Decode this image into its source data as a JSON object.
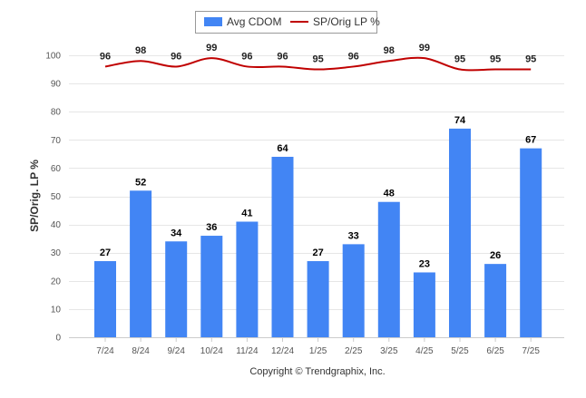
{
  "chart_data": {
    "type": "bar",
    "categories": [
      "7/24",
      "8/24",
      "9/24",
      "10/24",
      "11/24",
      "12/24",
      "1/25",
      "2/25",
      "3/25",
      "4/25",
      "5/25",
      "6/25",
      "7/25"
    ],
    "series": [
      {
        "name": "Avg CDOM",
        "type": "bar",
        "color": "#4285f4",
        "values": [
          27,
          52,
          34,
          36,
          41,
          64,
          27,
          33,
          48,
          23,
          74,
          26,
          67
        ]
      },
      {
        "name": "SP/Orig LP %",
        "type": "line",
        "color": "#c00000",
        "values": [
          96,
          98,
          96,
          99,
          96,
          96,
          95,
          96,
          98,
          99,
          95,
          95,
          95
        ]
      }
    ],
    "ylabel": "SP/Orig. LP %",
    "ylim": [
      0,
      100
    ],
    "yticks": [
      0,
      10,
      20,
      30,
      40,
      50,
      60,
      70,
      80,
      90,
      100
    ],
    "grid": true,
    "legend_position": "top-center"
  },
  "footer": {
    "copyright": "Copyright © Trendgraphix, Inc."
  }
}
